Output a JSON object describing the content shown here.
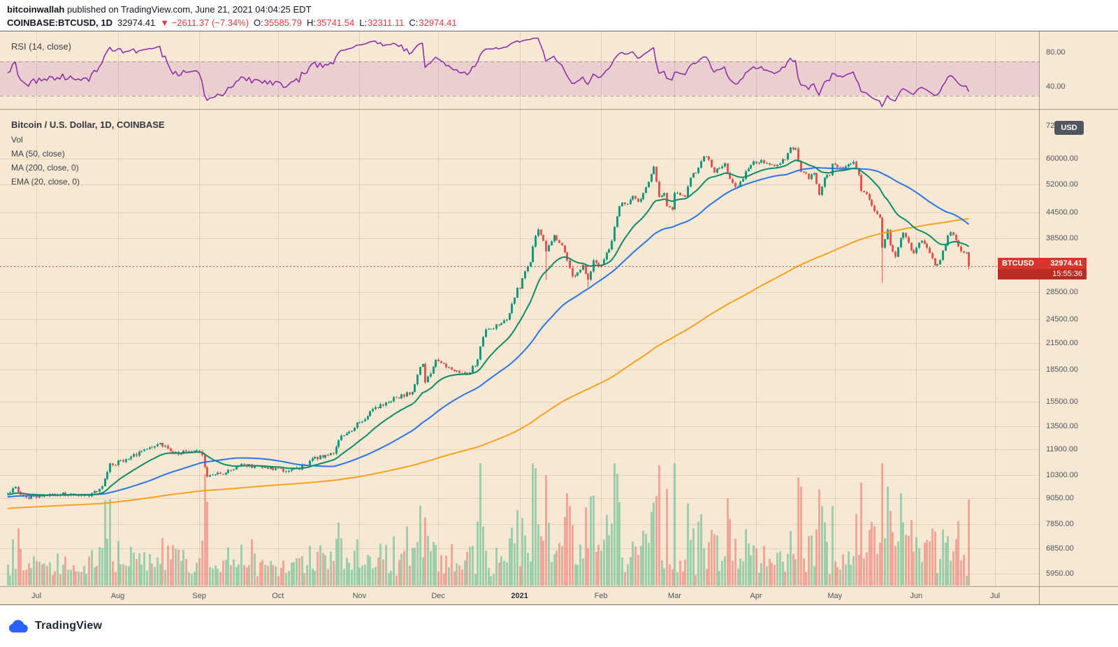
{
  "header": {
    "author": "bitcoinwallah",
    "published_text": " published on TradingView.com, June 21, 2021 04:04:25 EDT",
    "symbol": "COINBASE:BTCUSD, 1D",
    "last_price": "32974.41",
    "change": "▼ −2611.37 (−7.34%)",
    "ohlc": {
      "o_label": "O:",
      "o_value": "35585.79",
      "h_label": "H:",
      "h_value": "35741.54",
      "l_label": "L:",
      "l_value": "32311.11",
      "c_label": "C:",
      "c_value": "32974.41"
    }
  },
  "rsi_pane": {
    "legend": "RSI (14, close)",
    "axis_labels": [
      {
        "value": 80,
        "label": "80.00"
      },
      {
        "value": 40,
        "label": "40.00"
      }
    ],
    "range": [
      15,
      100
    ],
    "band": [
      30,
      70
    ]
  },
  "main_pane": {
    "legend_title": "Bitcoin / U.S. Dollar, 1D, COINBASE",
    "legend_items": [
      "Vol",
      "MA (50, close)",
      "MA (200, close, 0)",
      "EMA (20, close, 0)"
    ],
    "currency_badge": "USD",
    "price_ticks": [
      {
        "value": 60000,
        "label": "60000.00"
      },
      {
        "value": 52000,
        "label": "52000.00"
      },
      {
        "value": 44500,
        "label": "44500.00"
      },
      {
        "value": 38500,
        "label": "38500.00"
      },
      {
        "value": 28500,
        "label": "28500.00"
      },
      {
        "value": 24500,
        "label": "24500.00"
      },
      {
        "value": 21500,
        "label": "21500.00"
      },
      {
        "value": 18500,
        "label": "18500.00"
      },
      {
        "value": 15500,
        "label": "15500.00"
      },
      {
        "value": 13500,
        "label": "13500.00"
      },
      {
        "value": 11900,
        "label": "11900.00"
      },
      {
        "value": 10300,
        "label": "10300.00"
      },
      {
        "value": 9050,
        "label": "9050.00"
      },
      {
        "value": 7850,
        "label": "7850.00"
      },
      {
        "value": 6850,
        "label": "6850.00"
      },
      {
        "value": 5950,
        "label": "5950.00"
      }
    ],
    "top_partial_tick": {
      "value": 72000,
      "label": "72000.00"
    },
    "price_tag": {
      "symbol": "BTCUSD",
      "price": "32974.41",
      "time": "15:55:36",
      "value": 32974.41
    }
  },
  "time_axis": {
    "labels": [
      {
        "day": 0,
        "label": "Jul"
      },
      {
        "day": 31,
        "label": "Aug"
      },
      {
        "day": 62,
        "label": "Sep"
      },
      {
        "day": 92,
        "label": "Oct"
      },
      {
        "day": 123,
        "label": "Nov"
      },
      {
        "day": 153,
        "label": "Dec"
      },
      {
        "day": 184,
        "label": "2021",
        "em": true
      },
      {
        "day": 215,
        "label": "Feb"
      },
      {
        "day": 243,
        "label": "Mar"
      },
      {
        "day": 274,
        "label": "Apr"
      },
      {
        "day": 304,
        "label": "May"
      },
      {
        "day": 335,
        "label": "Jun"
      },
      {
        "day": 365,
        "label": "Jul"
      }
    ]
  },
  "footer": {
    "brand": "TradingView"
  },
  "colors": {
    "background": "#f7e8d4",
    "negative": "#e03c3c",
    "up": "#0f9a80",
    "down": "#e8544d",
    "vol_up": "rgba(83,185,135,0.55)",
    "vol_down": "rgba(236,112,104,0.55)",
    "ma50": "#2874e8",
    "ma200": "#f9a11b",
    "ema20": "#0c8a6a",
    "rsi": "#8e24aa",
    "rsi_band_fill": "rgba(142,36,170,0.13)",
    "rsi_band_edge": "rgba(120,95,110,0.55)",
    "grid": "rgba(140,110,80,0.18)",
    "frame": "rgba(90,78,66,0.5)",
    "axis_text": "#50535e",
    "tag_bg": "#d7352b",
    "tag_bg2": "#b92c22",
    "badge_bg": "#50565e",
    "dotted_line": "#e23d33"
  },
  "chart_data": {
    "type": "candlestick",
    "title": "Bitcoin / U.S. Dollar, 1D, COINBASE",
    "symbol": "COINBASE:BTCUSD",
    "interval": "1D",
    "price_scale": "log",
    "day0_date": "2020-07-01",
    "day_range": [
      -11,
      355
    ],
    "x_data_range": [
      "2020-06-20",
      "2021-06-21"
    ],
    "y_axis_ticks": [
      5950,
      6850,
      7850,
      9050,
      10300,
      11900,
      13500,
      15500,
      18500,
      21500,
      24500,
      28500,
      32974.41,
      38500,
      44500,
      52000,
      60000,
      72000
    ],
    "ohlc_last": {
      "open": 35585.79,
      "high": 35741.54,
      "low": 32311.11,
      "close": 32974.41
    },
    "last_change": {
      "abs": -2611.37,
      "pct": -7.34
    },
    "price_anchors": [
      [
        -11,
        9400
      ],
      [
        -8,
        9550
      ],
      [
        -4,
        9050
      ],
      [
        0,
        9180
      ],
      [
        6,
        9280
      ],
      [
        14,
        9230
      ],
      [
        20,
        9160
      ],
      [
        25,
        9650
      ],
      [
        28,
        10900
      ],
      [
        32,
        11100
      ],
      [
        40,
        11750
      ],
      [
        47,
        12300
      ],
      [
        52,
        11600
      ],
      [
        56,
        11750
      ],
      [
        61,
        11900
      ],
      [
        63,
        11400
      ],
      [
        65,
        10200
      ],
      [
        68,
        10300
      ],
      [
        72,
        10450
      ],
      [
        78,
        10950
      ],
      [
        84,
        10750
      ],
      [
        90,
        10700
      ],
      [
        93,
        10620
      ],
      [
        98,
        10550
      ],
      [
        104,
        11100
      ],
      [
        108,
        11450
      ],
      [
        113,
        11550
      ],
      [
        116,
        12850
      ],
      [
        120,
        13050
      ],
      [
        122,
        13650
      ],
      [
        124,
        13750
      ],
      [
        128,
        14850
      ],
      [
        134,
        15550
      ],
      [
        138,
        15950
      ],
      [
        143,
        16300
      ],
      [
        146,
        18750
      ],
      [
        147,
        19150
      ],
      [
        148,
        17150
      ],
      [
        150,
        18250
      ],
      [
        152,
        19650
      ],
      [
        154,
        19400
      ],
      [
        157,
        18650
      ],
      [
        161,
        18250
      ],
      [
        164,
        18050
      ],
      [
        168,
        19400
      ],
      [
        169,
        21300
      ],
      [
        171,
        23100
      ],
      [
        174,
        23450
      ],
      [
        177,
        23850
      ],
      [
        179,
        24700
      ],
      [
        181,
        26450
      ],
      [
        183,
        29000
      ],
      [
        184,
        29350
      ],
      [
        186,
        32200
      ],
      [
        188,
        34000
      ],
      [
        189,
        37000
      ],
      [
        191,
        40700
      ],
      [
        193,
        38200
      ],
      [
        194,
        35500
      ],
      [
        197,
        39200
      ],
      [
        200,
        37000
      ],
      [
        201,
        35500
      ],
      [
        204,
        30900
      ],
      [
        207,
        32300
      ],
      [
        208,
        33000
      ],
      [
        210,
        30400
      ],
      [
        212,
        34300
      ],
      [
        214,
        33100
      ],
      [
        215,
        33500
      ],
      [
        218,
        36000
      ],
      [
        219,
        38300
      ],
      [
        222,
        46400
      ],
      [
        225,
        47000
      ],
      [
        227,
        48700
      ],
      [
        229,
        47200
      ],
      [
        231,
        49600
      ],
      [
        233,
        52200
      ],
      [
        235,
        57400
      ],
      [
        237,
        48900
      ],
      [
        239,
        49700
      ],
      [
        240,
        46300
      ],
      [
        242,
        45200
      ],
      [
        243,
        49600
      ],
      [
        245,
        48500
      ],
      [
        247,
        48900
      ],
      [
        249,
        54000
      ],
      [
        251,
        55900
      ],
      [
        254,
        61200
      ],
      [
        256,
        59000
      ],
      [
        258,
        55900
      ],
      [
        260,
        56900
      ],
      [
        262,
        58000
      ],
      [
        264,
        54100
      ],
      [
        266,
        51300
      ],
      [
        268,
        52400
      ],
      [
        270,
        55800
      ],
      [
        272,
        57600
      ],
      [
        273,
        58900
      ],
      [
        274,
        58700
      ],
      [
        276,
        59100
      ],
      [
        279,
        57800
      ],
      [
        281,
        58000
      ],
      [
        283,
        58300
      ],
      [
        285,
        59800
      ],
      [
        287,
        63500
      ],
      [
        289,
        62900
      ],
      [
        291,
        56200
      ],
      [
        294,
        54000
      ],
      [
        296,
        55000
      ],
      [
        298,
        49100
      ],
      [
        300,
        54000
      ],
      [
        302,
        55000
      ],
      [
        303,
        57700
      ],
      [
        304,
        57800
      ],
      [
        306,
        56600
      ],
      [
        308,
        57400
      ],
      [
        311,
        58800
      ],
      [
        313,
        55000
      ],
      [
        314,
        49600
      ],
      [
        316,
        49700
      ],
      [
        318,
        46400
      ],
      [
        320,
        43500
      ],
      [
        321,
        42900
      ],
      [
        322,
        36700
      ],
      [
        324,
        40600
      ],
      [
        325,
        37300
      ],
      [
        327,
        34700
      ],
      [
        329,
        38400
      ],
      [
        330,
        39300
      ],
      [
        332,
        37500
      ],
      [
        333,
        35700
      ],
      [
        334,
        35700
      ],
      [
        335,
        36700
      ],
      [
        337,
        37600
      ],
      [
        339,
        36800
      ],
      [
        340,
        35600
      ],
      [
        342,
        33400
      ],
      [
        344,
        33800
      ],
      [
        345,
        35800
      ],
      [
        347,
        39000
      ],
      [
        348,
        40200
      ],
      [
        350,
        38100
      ],
      [
        352,
        35800
      ],
      [
        354,
        35600
      ],
      [
        355,
        32974.41
      ]
    ],
    "special_lows": [
      [
        194,
        30500
      ],
      [
        210,
        29300
      ],
      [
        322,
        30000
      ]
    ],
    "indicators": [
      {
        "name": "EMA (20, close, 0)",
        "period": 20,
        "type": "ema"
      },
      {
        "name": "MA (50, close)",
        "period": 50,
        "type": "sma"
      },
      {
        "name": "MA (200, close, 0)",
        "period": 200,
        "type": "sma"
      },
      {
        "name": "RSI (14, close)",
        "period": 14,
        "type": "rsi",
        "band": [
          30,
          70
        ]
      },
      {
        "name": "Vol",
        "type": "volume"
      }
    ]
  }
}
